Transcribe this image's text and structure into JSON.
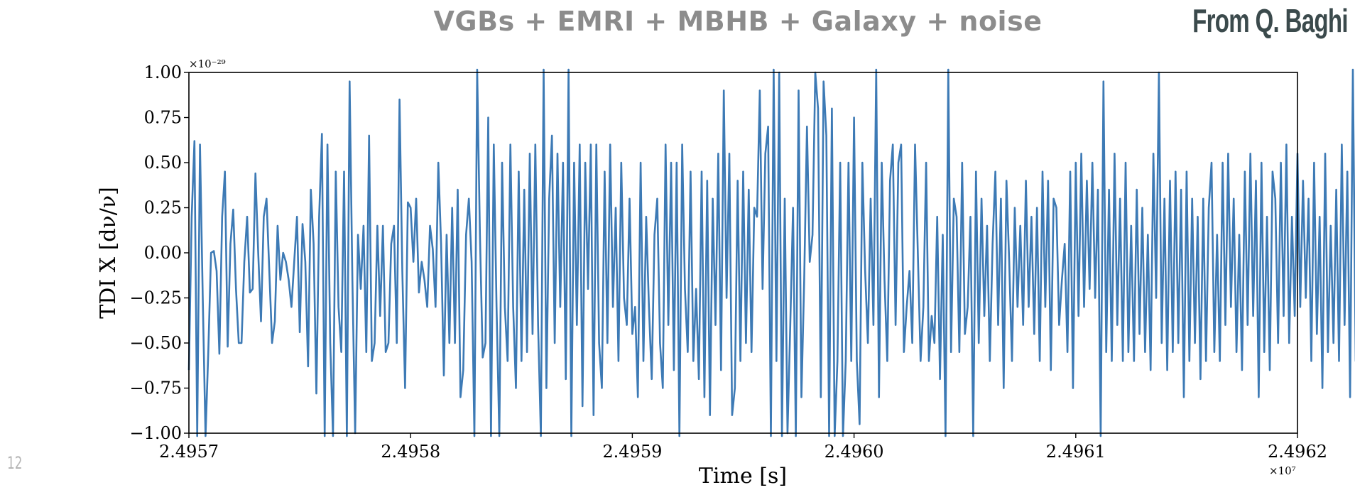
{
  "slide": {
    "title": "VGBs + EMRI + MBHB + Galaxy + noise",
    "credit": "From Q. Baghi",
    "number": "12"
  },
  "colors": {
    "series": "#3d7ab5",
    "title": "#8c8c8c",
    "credit": "#3b4a4c"
  },
  "chart_data": {
    "type": "line",
    "title": "",
    "xlabel": "Time [s]",
    "ylabel": "TDI X [dν/ν]",
    "x_offset_label": "×10⁷",
    "y_offset_label": "×10⁻²⁹",
    "xlim": [
      2.4957,
      2.4962
    ],
    "ylim": [
      -1.0,
      1.0
    ],
    "xticks": [
      "2.4957",
      "2.4958",
      "2.4959",
      "2.4960",
      "2.4961",
      "2.4962"
    ],
    "yticks": [
      "1.00",
      "0.75",
      "0.50",
      "0.25",
      "0.00",
      "−0.25",
      "−0.50",
      "−0.75",
      "−1.00"
    ],
    "grid": false,
    "series": [
      {
        "x_start": 2.4957,
        "x_step": 1.25e-06,
        "values": [
          -0.65,
          0.2,
          0.62,
          -1.15,
          0.6,
          -0.25,
          -1.05,
          -0.55,
          0.0,
          0.01,
          -0.1,
          -0.56,
          0.2,
          0.45,
          -0.52,
          0.05,
          0.24,
          -0.2,
          -0.5,
          -0.5,
          -0.05,
          0.2,
          -0.22,
          -0.2,
          0.44,
          0.0,
          -0.38,
          0.2,
          0.3,
          -0.1,
          -0.5,
          -0.38,
          0.15,
          -0.15,
          0.0,
          -0.05,
          -0.15,
          -0.3,
          -0.05,
          0.2,
          -0.44,
          0.16,
          -0.05,
          -0.63,
          0.35,
          0.05,
          -0.78,
          0.2,
          0.66,
          -1.1,
          0.6,
          -0.5,
          -1.05,
          0.45,
          -0.3,
          -0.55,
          0.45,
          -1.1,
          0.95,
          -0.15,
          -1.0,
          0.1,
          -0.2,
          0.15,
          -0.55,
          0.65,
          -0.6,
          -0.5,
          0.15,
          -0.35,
          0.15,
          -0.55,
          -0.5,
          0.05,
          0.15,
          -0.5,
          0.85,
          -0.1,
          -0.75,
          0.28,
          0.25,
          -0.05,
          0.3,
          -0.22,
          -0.05,
          -0.15,
          -0.3,
          0.15,
          0.02,
          -0.3,
          0.5,
          0.05,
          -0.68,
          0.1,
          -0.5,
          0.25,
          -0.5,
          0.35,
          -0.8,
          -0.65,
          0.1,
          0.3,
          -0.05,
          -1.1,
          1.1,
          0.1,
          -0.58,
          -0.5,
          0.75,
          -1.1,
          0.6,
          -0.3,
          -1.2,
          0.5,
          -0.3,
          -0.6,
          0.6,
          -0.3,
          -0.75,
          0.45,
          -0.6,
          0.35,
          -0.55,
          0.55,
          -0.45,
          0.6,
          -0.4,
          -1.1,
          1.2,
          -0.75,
          0.3,
          0.65,
          -0.5,
          0.55,
          -0.3,
          0.5,
          -0.7,
          1.2,
          -1.1,
          0.5,
          -0.4,
          0.6,
          -0.85,
          0.5,
          -0.2,
          0.6,
          -0.9,
          0.6,
          -0.5,
          -0.75,
          0.45,
          -0.5,
          0.6,
          -0.3,
          0.25,
          -0.6,
          0.5,
          -0.25,
          -0.4,
          0.3,
          -0.45,
          -0.3,
          -0.8,
          0.5,
          -0.6,
          0.2,
          -0.3,
          -0.7,
          0.1,
          0.3,
          -0.5,
          -0.75,
          0.6,
          -0.4,
          0.5,
          -0.65,
          0.5,
          -1.05,
          0.6,
          -0.2,
          -0.55,
          0.45,
          -0.6,
          -0.2,
          -0.7,
          0.45,
          -0.8,
          0.4,
          -0.9,
          0.3,
          -0.4,
          0.55,
          -0.65,
          0.9,
          -0.25,
          0.55,
          -0.9,
          -0.75,
          0.4,
          -0.6,
          0.45,
          -0.5,
          0.35,
          -0.55,
          0.25,
          0.2,
          0.9,
          -0.2,
          0.55,
          0.7,
          -1.1,
          1.2,
          -0.6,
          1.0,
          -1.1,
          0.3,
          -1.0,
          -0.4,
          0.25,
          -1.2,
          0.9,
          -0.8,
          -0.15,
          0.7,
          -0.05,
          0.1,
          1.0,
          0.8,
          -0.8,
          0.95,
          0.65,
          -1.2,
          0.8,
          -1.1,
          -0.6,
          0.5,
          -1.15,
          -0.6,
          0.5,
          -0.6,
          0.75,
          -0.6,
          -0.95,
          0.5,
          -0.1,
          -0.5,
          0.3,
          -0.4,
          1.2,
          -0.8,
          0.5,
          -0.15,
          -0.6,
          0.4,
          0.6,
          -0.4,
          0.5,
          0.6,
          -0.55,
          -0.3,
          -0.1,
          -0.5,
          0.6,
          0.0,
          -0.6,
          -0.3,
          0.5,
          -0.6,
          -0.35,
          -0.5,
          0.2,
          -0.7,
          0.1,
          -1.1,
          1.1,
          -0.55,
          0.3,
          0.2,
          -0.55,
          0.5,
          -0.45,
          -0.3,
          0.2,
          -1.05,
          0.45,
          -0.5,
          0.3,
          -0.35,
          0.15,
          -0.6,
          0.05,
          0.45,
          -0.4,
          0.3,
          -0.75,
          0.4,
          -0.05,
          -0.6,
          0.25,
          -0.3,
          0.15,
          -0.4,
          0.4,
          -0.3,
          0.2,
          -0.45,
          0.25,
          -0.6,
          0.45,
          -0.3,
          0.4,
          -0.65,
          0.3,
          0.25,
          -0.4,
          -0.15,
          0.05,
          -0.55,
          0.45,
          -0.75,
          0.5,
          -0.35,
          0.55,
          -0.3,
          0.4,
          -0.2,
          0.5,
          -0.25,
          0.35,
          -1.1,
          0.95,
          -0.55,
          0.35,
          -0.6,
          0.55,
          -0.4,
          0.3,
          -0.6,
          0.5,
          -0.55,
          0.15,
          -0.6,
          0.35,
          -0.45,
          0.25,
          -0.55,
          0.1,
          -0.65,
          0.55,
          -0.25,
          1.0,
          -0.5,
          0.3,
          -0.65,
          0.4,
          -0.55,
          0.45,
          -0.5,
          0.35,
          -0.8,
          0.45,
          -0.6,
          0.3,
          -0.5,
          0.2,
          -0.7,
          0.3,
          -0.6,
          0.25,
          0.5,
          -0.55,
          0.1,
          -0.6,
          0.5,
          -0.4,
          0.55,
          -0.3,
          0.3,
          -0.55,
          0.1,
          -0.65,
          0.45,
          -0.4,
          0.55,
          -0.35,
          0.4,
          -0.8,
          0.5,
          -0.55,
          0.2,
          -0.65,
          0.45,
          0.3,
          -0.5,
          0.5,
          -0.35,
          0.6,
          -0.5,
          0.2,
          -0.35,
          0.55,
          -0.3,
          0.4,
          -0.25,
          0.3,
          -0.6,
          0.5,
          -0.45,
          0.2,
          -0.75,
          0.55,
          -0.55,
          0.15,
          -0.5,
          0.35,
          -0.6,
          0.6,
          -0.4,
          0.45,
          -0.8,
          1.1,
          -0.6,
          0.5,
          -0.55,
          0.35,
          -0.7,
          0.75,
          -0.8,
          1.1,
          -0.85,
          0.45,
          -0.45,
          0.25,
          -0.5,
          0.35,
          -0.7,
          0.0,
          0.05,
          -0.15,
          -0.25,
          0.0,
          -0.25,
          -0.2,
          0.05,
          0.35,
          0.52
        ]
      }
    ]
  }
}
